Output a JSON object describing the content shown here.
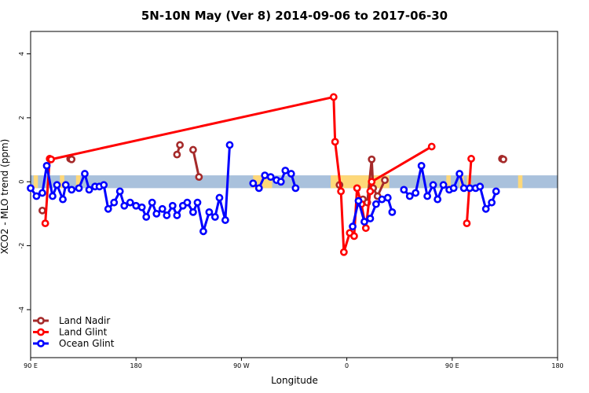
{
  "chart_data": {
    "type": "line",
    "title": "5N-10N May (Ver 8)   2014-09-06 to 2017-06-30",
    "xlabel": "Longitude",
    "ylabel": "XCO2 - MLO trend (ppm)",
    "xlim": [
      -90,
      270
    ],
    "ylim": [
      -5.5,
      4.7
    ],
    "x_ticks": [
      {
        "value": -90,
        "label": "90 E"
      },
      {
        "value": -18,
        "label": "180"
      },
      {
        "value": 54,
        "label": "90 W"
      },
      {
        "value": 126,
        "label": "0"
      },
      {
        "value": 198,
        "label": "90 E"
      },
      {
        "value": 270,
        "label": "180"
      }
    ],
    "y_ticks": [
      {
        "value": -4,
        "label": "-4"
      },
      {
        "value": -2,
        "label": "-2"
      },
      {
        "value": 0,
        "label": "0"
      },
      {
        "value": 2,
        "label": "2"
      },
      {
        "value": 4,
        "label": "4"
      }
    ],
    "band": {
      "ymin": -0.2,
      "ymax": 0.2,
      "ocean_color": "#a9c1dc",
      "land_color": "#fed879"
    },
    "land_segments": [
      [
        -88,
        -85
      ],
      [
        -70,
        -67
      ],
      [
        -59,
        -56
      ],
      [
        62,
        75
      ],
      [
        115,
        155
      ],
      [
        194,
        197
      ],
      [
        203,
        206
      ],
      [
        208,
        211
      ],
      [
        243,
        246
      ]
    ],
    "legend_position": "bottom-left",
    "series": [
      {
        "name": "Land Nadir",
        "color": "#a52a2a",
        "points": [
          [
            -82,
            -0.9
          ],
          [
            -63,
            0.72
          ],
          [
            -62,
            0.7
          ],
          [
            10,
            0.85
          ],
          [
            12,
            1.15
          ],
          [
            21,
            1.0
          ],
          [
            25,
            0.15
          ],
          [
            121,
            -0.1
          ],
          [
            137,
            -0.55
          ],
          [
            140,
            -0.65
          ],
          [
            143,
            0.7
          ],
          [
            144,
            -0.2
          ],
          [
            147,
            -0.45
          ],
          [
            152,
            0.05
          ],
          [
            232,
            0.72
          ],
          [
            233,
            0.7
          ]
        ],
        "breaks_after": [
          0,
          2,
          4,
          6,
          7,
          13
        ]
      },
      {
        "name": "Land Glint",
        "color": "#ff0000",
        "points": [
          [
            -80,
            -1.3
          ],
          [
            -77,
            0.72
          ],
          [
            -76,
            0.7
          ],
          [
            117,
            2.65
          ],
          [
            118,
            1.25
          ],
          [
            122,
            -0.3
          ],
          [
            124,
            -2.2
          ],
          [
            128,
            -1.6
          ],
          [
            131,
            -1.7
          ],
          [
            133,
            -0.2
          ],
          [
            136,
            -0.7
          ],
          [
            139,
            -1.45
          ],
          [
            142,
            -0.3
          ],
          [
            143,
            0.0
          ],
          [
            184,
            1.1
          ],
          [
            208,
            -1.3
          ],
          [
            211,
            0.72
          ]
        ],
        "breaks_after": [
          1,
          14
        ]
      },
      {
        "name": "Ocean Glint",
        "color": "#0000ff",
        "points": [
          [
            -90,
            -0.2
          ],
          [
            -86,
            -0.45
          ],
          [
            -82,
            -0.35
          ],
          [
            -79,
            0.5
          ],
          [
            -75,
            -0.45
          ],
          [
            -72,
            -0.1
          ],
          [
            -68,
            -0.55
          ],
          [
            -66,
            -0.1
          ],
          [
            -62,
            -0.25
          ],
          [
            -57,
            -0.2
          ],
          [
            -53,
            0.25
          ],
          [
            -50,
            -0.25
          ],
          [
            -46,
            -0.15
          ],
          [
            -43,
            -0.15
          ],
          [
            -40,
            -0.1
          ],
          [
            -37,
            -0.85
          ],
          [
            -33,
            -0.65
          ],
          [
            -29,
            -0.3
          ],
          [
            -26,
            -0.75
          ],
          [
            -22,
            -0.65
          ],
          [
            -18,
            -0.75
          ],
          [
            -14,
            -0.8
          ],
          [
            -11,
            -1.1
          ],
          [
            -7,
            -0.65
          ],
          [
            -4,
            -1.0
          ],
          [
            0,
            -0.85
          ],
          [
            3,
            -1.05
          ],
          [
            7,
            -0.75
          ],
          [
            10,
            -1.05
          ],
          [
            14,
            -0.75
          ],
          [
            17,
            -0.65
          ],
          [
            21,
            -0.95
          ],
          [
            24,
            -0.65
          ],
          [
            28,
            -1.55
          ],
          [
            32,
            -0.95
          ],
          [
            36,
            -1.1
          ],
          [
            39,
            -0.5
          ],
          [
            43,
            -1.2
          ],
          [
            46,
            1.15
          ],
          [
            62,
            -0.05
          ],
          [
            66,
            -0.2
          ],
          [
            70,
            0.2
          ],
          [
            74,
            0.15
          ],
          [
            78,
            0.05
          ],
          [
            81,
            0.0
          ],
          [
            84,
            0.35
          ],
          [
            88,
            0.25
          ],
          [
            91,
            -0.2
          ],
          [
            130,
            -1.4
          ],
          [
            134,
            -0.6
          ],
          [
            138,
            -1.25
          ],
          [
            142,
            -1.15
          ],
          [
            146,
            -0.7
          ],
          [
            150,
            -0.55
          ],
          [
            154,
            -0.5
          ],
          [
            157,
            -0.95
          ],
          [
            165,
            -0.25
          ],
          [
            169,
            -0.45
          ],
          [
            173,
            -0.35
          ],
          [
            177,
            0.5
          ],
          [
            181,
            -0.45
          ],
          [
            185,
            -0.1
          ],
          [
            188,
            -0.55
          ],
          [
            192,
            -0.1
          ],
          [
            196,
            -0.25
          ],
          [
            199,
            -0.2
          ],
          [
            203,
            0.25
          ],
          [
            206,
            -0.2
          ],
          [
            210,
            -0.2
          ],
          [
            214,
            -0.2
          ],
          [
            217,
            -0.15
          ],
          [
            221,
            -0.85
          ],
          [
            225,
            -0.65
          ],
          [
            228,
            -0.3
          ]
        ],
        "breaks_after": [
          38,
          47,
          55
        ]
      }
    ]
  }
}
